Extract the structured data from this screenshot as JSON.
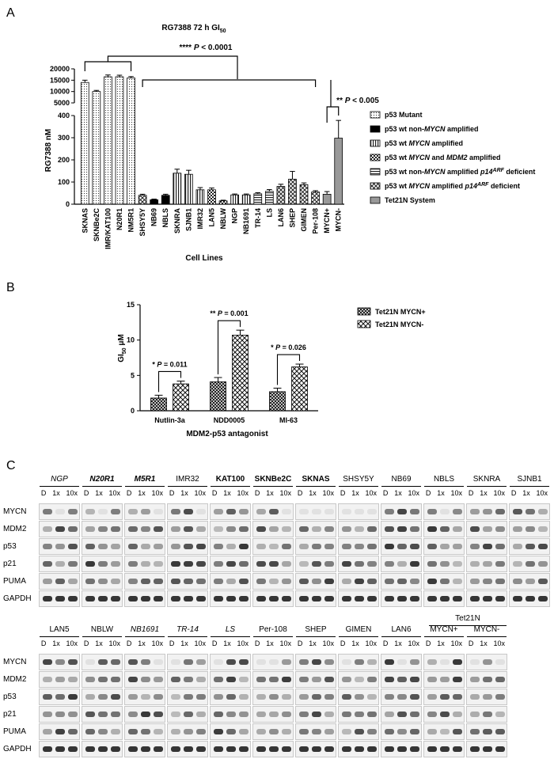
{
  "panels": {
    "a": "A",
    "b": "B",
    "c": "C"
  },
  "chart_data": [
    {
      "type": "bar",
      "title": "RG7388 72 h GI50",
      "title_main": "RG7388 72 h GI",
      "title_sub": "50",
      "xlabel": "Cell Lines",
      "ylabel": "RG7388 nM",
      "ylim_lower": [
        0,
        400
      ],
      "ylim_upper": [
        5000,
        20000
      ],
      "yticks_lower": [
        "0",
        "100",
        "200",
        "300",
        "400"
      ],
      "yticks_upper": [
        "5000",
        "10000",
        "15000",
        "20000"
      ],
      "categories": [
        "SKNAS",
        "SKNBe2C",
        "IMR/KAT100",
        "N20R1",
        "NM5R1",
        "SHSY5Y",
        "NB69",
        "NBLS",
        "SKNRA",
        "SJNB1",
        "IMR32",
        "LAN5",
        "NBLW",
        "NGP",
        "NB1691",
        "TR-14",
        "LS",
        "LAN6",
        "SHEP",
        "GIMEN",
        "Per-108",
        "MYCN+",
        "MYCN-"
      ],
      "values": [
        14000,
        10000,
        16500,
        16500,
        16000,
        40,
        20,
        40,
        140,
        135,
        65,
        65,
        15,
        42,
        42,
        47,
        58,
        80,
        113,
        88,
        55,
        45,
        298
      ],
      "errors": [
        1000,
        500,
        800,
        700,
        600,
        5,
        3,
        5,
        18,
        18,
        10,
        8,
        3,
        4,
        4,
        5,
        8,
        10,
        35,
        8,
        6,
        12,
        80
      ],
      "group_index": [
        0,
        0,
        0,
        0,
        0,
        5,
        1,
        1,
        2,
        2,
        2,
        3,
        3,
        2,
        2,
        4,
        4,
        5,
        5,
        5,
        5,
        6,
        6
      ],
      "legend": [
        {
          "pre": "p53 Mutant",
          "em": "",
          "post": "",
          "sup": "",
          "tail": "",
          "fill": "dots"
        },
        {
          "pre": "p53 wt non-",
          "em": "MYCN",
          "post": " amplified",
          "sup": "",
          "tail": "",
          "fill": "black"
        },
        {
          "pre": "p53 wt ",
          "em": "MYCN",
          "post": " amplified",
          "sup": "",
          "tail": "",
          "fill": "vlines"
        },
        {
          "pre": "p53 wt ",
          "em": "MYCN",
          "post": " and ",
          "em2": "MDM2",
          "post2": " amplified",
          "sup": "",
          "tail": "",
          "fill": "check"
        },
        {
          "pre": "p53 wt non-",
          "em": "MYCN",
          "post": " amplified ",
          "em2": "p14",
          "sup": "ARF",
          "tail": " deficient",
          "fill": "hlines"
        },
        {
          "pre": "p53 wt ",
          "em": "MYCN",
          "post": " amplified ",
          "em2": "p14",
          "sup": "ARF",
          "tail": " deficient",
          "fill": "white"
        },
        {
          "pre": "Tet21N System",
          "em": "",
          "post": "",
          "sup": "",
          "tail": "",
          "fill": "gray"
        }
      ],
      "annotations": [
        {
          "stars": "****",
          "p": "P",
          "rest": " < 0.0001"
        },
        {
          "stars": "**",
          "p": "P",
          "rest": " < 0.005"
        }
      ]
    },
    {
      "type": "bar",
      "title": "",
      "xlabel": "MDM2-p53 antagonist",
      "ylabel": "GI50 μM",
      "ylabel_main": "GI",
      "ylabel_sub": "50",
      "ylabel_unit": " μM",
      "ylim": [
        0,
        15
      ],
      "yticks": [
        "0",
        "5",
        "10",
        "15"
      ],
      "categories": [
        "Nutlin-3a",
        "NDD0005",
        "MI-63"
      ],
      "series": [
        {
          "name": "Tet21N MYCN+",
          "values": [
            1.8,
            4.1,
            2.7
          ],
          "errors": [
            0.4,
            0.6,
            0.5
          ]
        },
        {
          "name": "Tet21N MYCN-",
          "values": [
            3.8,
            10.7,
            6.2
          ],
          "errors": [
            0.4,
            0.7,
            0.4
          ]
        }
      ],
      "annotations": [
        {
          "stars": "*",
          "p": "P",
          "rest": " = 0.011"
        },
        {
          "stars": "**",
          "p": "P",
          "rest": " = 0.001"
        },
        {
          "stars": "*",
          "p": "P",
          "rest": " = 0.026"
        }
      ]
    }
  ],
  "blots": {
    "row_labels": [
      "MYCN",
      "MDM2",
      "p53",
      "p21",
      "PUMA",
      "GAPDH"
    ],
    "lanes": [
      "D",
      "1x",
      "10x"
    ],
    "tet_header": "Tet21N",
    "top": [
      {
        "name": "NGP",
        "style": "italic"
      },
      {
        "name": "N20R1",
        "style": "bold-italic"
      },
      {
        "name": "M5R1",
        "style": "bold-italic"
      },
      {
        "name": "IMR32",
        "style": "normal"
      },
      {
        "name": "KAT100",
        "style": "bold"
      },
      {
        "name": "SKNBe2C",
        "style": "bold"
      },
      {
        "name": "SKNAS",
        "style": "bold"
      },
      {
        "name": "SHSY5Y",
        "style": "normal"
      },
      {
        "name": "NB69",
        "style": "normal"
      },
      {
        "name": "NBLS",
        "style": "normal"
      },
      {
        "name": "SKNRA",
        "style": "normal"
      },
      {
        "name": "SJNB1",
        "style": "normal"
      }
    ],
    "bottom": [
      {
        "name": "LAN5",
        "style": "normal"
      },
      {
        "name": "NBLW",
        "style": "normal"
      },
      {
        "name": "NB1691",
        "style": "italic"
      },
      {
        "name": "TR-14",
        "style": "italic"
      },
      {
        "name": "LS",
        "style": "italic"
      },
      {
        "name": "Per-108",
        "style": "normal"
      },
      {
        "name": "SHEP",
        "style": "normal"
      },
      {
        "name": "GIMEN",
        "style": "normal"
      },
      {
        "name": "LAN6",
        "style": "normal"
      },
      {
        "name": "MYCN+",
        "style": "normal"
      },
      {
        "name": "MYCN-",
        "style": "normal"
      }
    ]
  }
}
